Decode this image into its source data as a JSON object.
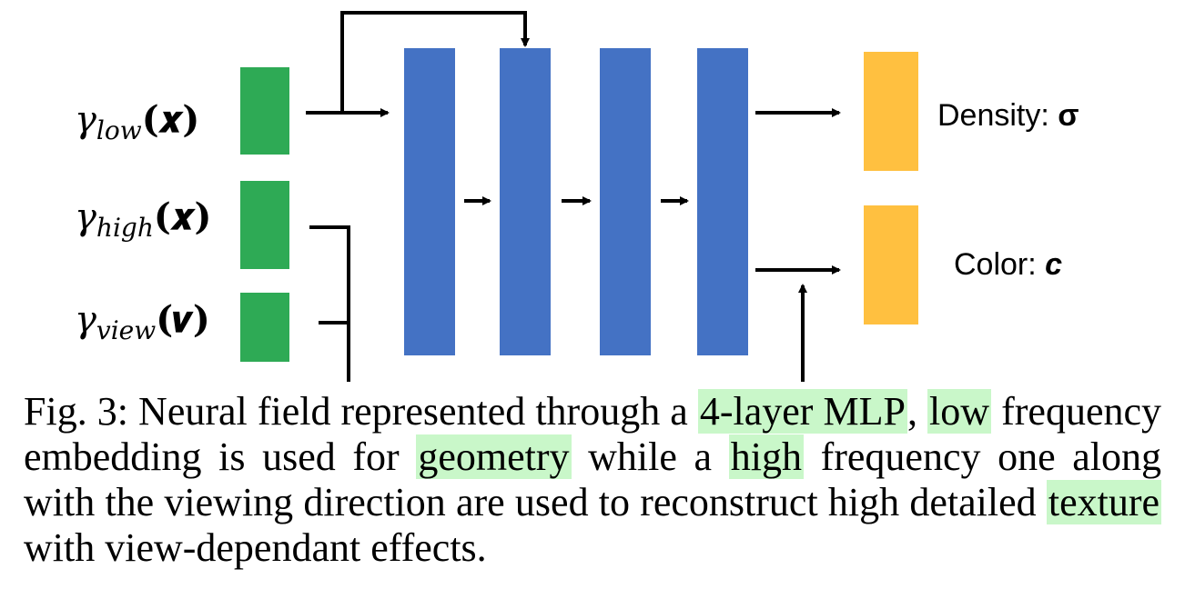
{
  "inputs": [
    {
      "gamma": "γ",
      "sub": "low",
      "arg": "(𝒙)"
    },
    {
      "gamma": "γ",
      "sub": "high",
      "arg": "(𝒙)"
    },
    {
      "gamma": "γ",
      "sub": "view",
      "arg": "(𝒗)"
    }
  ],
  "outputs": [
    {
      "label": "Density:",
      "symbol": "σ"
    },
    {
      "label": "Color:",
      "symbol": "c"
    }
  ],
  "caption": {
    "fig_label": "Fig. 3:",
    "p1": "Neural field represented through a",
    "h1": "4-layer MLP",
    "p2": ",",
    "h2": "low",
    "p3": "frequency embedding is used for",
    "h3": "geometry",
    "p4": "while a",
    "h4": "high",
    "p5": "frequency one along with the viewing direction are used to reconstruct high detailed",
    "h5": "texture",
    "p6": "with view-dependant effects."
  },
  "colors": {
    "input_block": "#2eaa55",
    "layer_block": "#4472c4",
    "output_block": "#ffc040",
    "highlight": "#c9f7c9"
  }
}
